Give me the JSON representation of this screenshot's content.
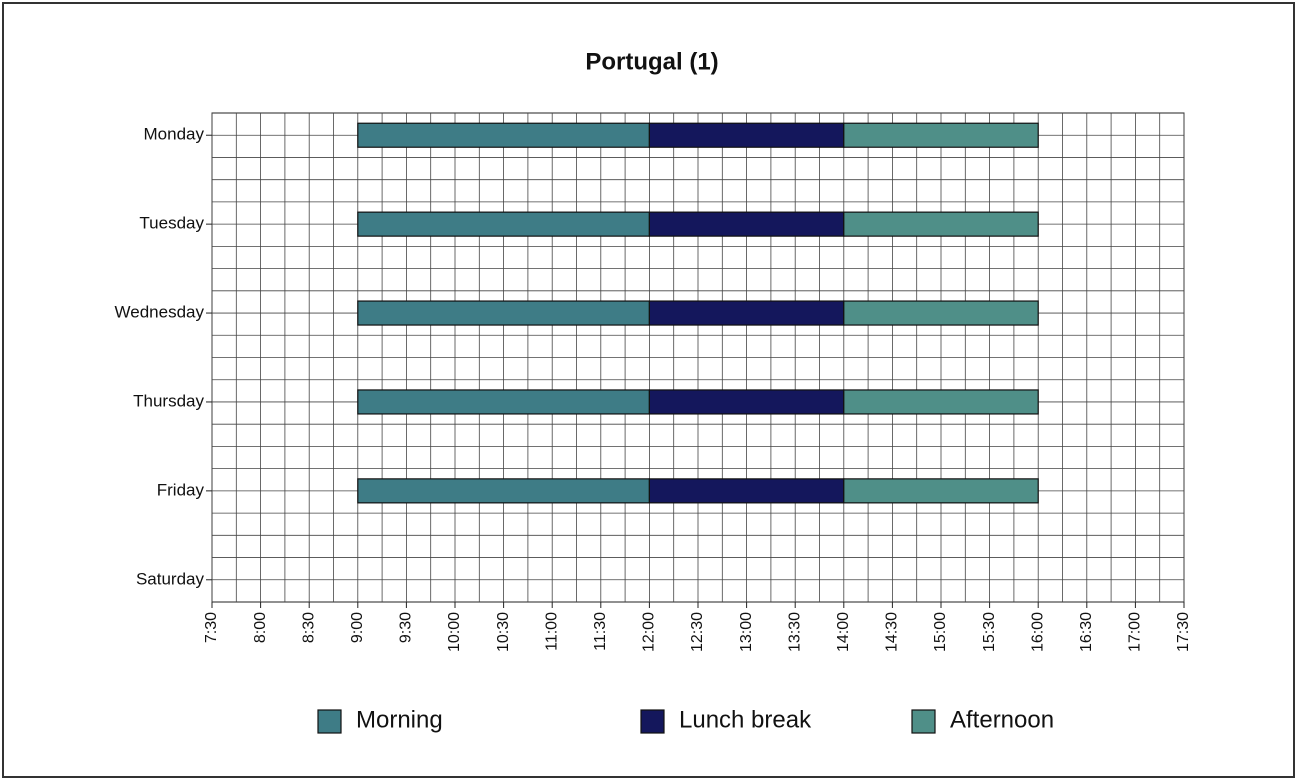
{
  "chart_data": {
    "type": "gantt",
    "title": "Portugal (1)",
    "categories": [
      "Monday",
      "Tuesday",
      "Wednesday",
      "Thursday",
      "Friday",
      "Saturday"
    ],
    "series": [
      {
        "name": "Morning",
        "color": "#3e7c86",
        "values": [
          [
            9,
            12
          ],
          [
            9,
            12
          ],
          [
            9,
            12
          ],
          [
            9,
            12
          ],
          [
            9,
            12
          ],
          null
        ]
      },
      {
        "name": "Lunch break",
        "color": "#14175c",
        "values": [
          [
            12,
            14
          ],
          [
            12,
            14
          ],
          [
            12,
            14
          ],
          [
            12,
            14
          ],
          [
            12,
            14
          ],
          null
        ]
      },
      {
        "name": "Afternoon",
        "color": "#4f8f88",
        "values": [
          [
            14,
            16
          ],
          [
            14,
            16
          ],
          [
            14,
            16
          ],
          [
            14,
            16
          ],
          [
            14,
            16
          ],
          null
        ]
      }
    ],
    "xlim": [
      7.5,
      17.5
    ],
    "xticks": [
      {
        "value": 7.5,
        "label": "7:30"
      },
      {
        "value": 8,
        "label": "8:00"
      },
      {
        "value": 8.5,
        "label": "8:30"
      },
      {
        "value": 9,
        "label": "9:00"
      },
      {
        "value": 9.5,
        "label": "9:30"
      },
      {
        "value": 10,
        "label": "10:00"
      },
      {
        "value": 10.5,
        "label": "10:30"
      },
      {
        "value": 11,
        "label": "11:00"
      },
      {
        "value": 11.5,
        "label": "11:30"
      },
      {
        "value": 12,
        "label": "12:00"
      },
      {
        "value": 12.5,
        "label": "12:30"
      },
      {
        "value": 13,
        "label": "13:00"
      },
      {
        "value": 13.5,
        "label": "13:30"
      },
      {
        "value": 14,
        "label": "14:00"
      },
      {
        "value": 14.5,
        "label": "14:30"
      },
      {
        "value": 15,
        "label": "15:00"
      },
      {
        "value": 15.5,
        "label": "15:30"
      },
      {
        "value": 16,
        "label": "16:00"
      },
      {
        "value": 16.5,
        "label": "16:30"
      },
      {
        "value": 17,
        "label": "17:00"
      },
      {
        "value": 17.5,
        "label": "17:30"
      }
    ],
    "grid": true,
    "minor_grid": true,
    "legend": "bottom"
  }
}
